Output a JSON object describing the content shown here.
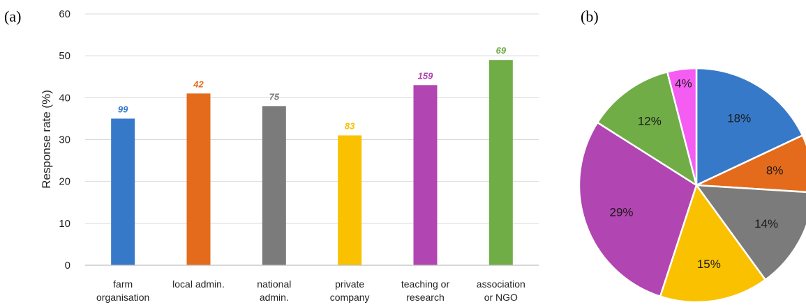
{
  "chart_data": [
    {
      "panel": "(a)",
      "type": "bar",
      "ylabel": "Response rate (%)",
      "ylim": [
        0,
        60
      ],
      "yticks": [
        "0",
        "10",
        "20",
        "30",
        "40",
        "50",
        "60"
      ],
      "grid": true,
      "categories": [
        [
          "farm",
          "organisation"
        ],
        [
          "local admin."
        ],
        [
          "national",
          "admin."
        ],
        [
          "private",
          "company"
        ],
        [
          "teaching or",
          "research"
        ],
        [
          "association",
          "or NGO"
        ]
      ],
      "values": [
        35,
        41,
        38,
        31,
        43,
        49
      ],
      "data_labels": [
        "99",
        "42",
        "75",
        "83",
        "159",
        "69"
      ],
      "colors": [
        "#3679c9",
        "#e46b1b",
        "#7b7b7b",
        "#f9c100",
        "#b145b1",
        "#70ad47"
      ]
    },
    {
      "panel": "(b)",
      "type": "pie",
      "slices": [
        {
          "label": "18%",
          "value": 18,
          "color": "#3679c9"
        },
        {
          "label": "8%",
          "value": 8,
          "color": "#e46b1b"
        },
        {
          "label": "14%",
          "value": 14,
          "color": "#7b7b7b"
        },
        {
          "label": "15%",
          "value": 15,
          "color": "#f9c100"
        },
        {
          "label": "29%",
          "value": 29,
          "color": "#b145b1"
        },
        {
          "label": "12%",
          "value": 12,
          "color": "#70ad47"
        },
        {
          "label": "4%",
          "value": 4,
          "color": "#f55cf2"
        }
      ]
    }
  ]
}
